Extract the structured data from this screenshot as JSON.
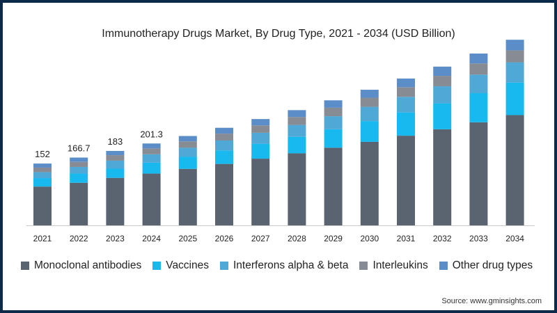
{
  "chart_data": {
    "type": "bar",
    "stacked": true,
    "title": "Immunotherapy Drugs Market, By Drug Type, 2021 - 2034 (USD Billion)",
    "categories": [
      "2021",
      "2022",
      "2023",
      "2024",
      "2025",
      "2026",
      "2027",
      "2028",
      "2029",
      "2030",
      "2031",
      "2032",
      "2033",
      "2034"
    ],
    "series": [
      {
        "name": "Monoclonal antibodies",
        "color": "#5a6370",
        "values": [
          95.4,
          104.7,
          116.8,
          127.3,
          138.9,
          151.1,
          164.0,
          177.1,
          190.9,
          205.3,
          220.4,
          236.3,
          253.4,
          271.1
        ]
      },
      {
        "name": "Vaccines",
        "color": "#17b9ee",
        "values": [
          20.8,
          22.8,
          22.6,
          26.9,
          29.6,
          33.0,
          36.7,
          40.5,
          45.3,
          51.0,
          57.1,
          63.7,
          71.5,
          79.9
        ]
      },
      {
        "name": "Interferons alpha & beta",
        "color": "#4fa8d6",
        "values": [
          14.5,
          16.2,
          19.8,
          20.5,
          22.3,
          24.5,
          26.9,
          29.3,
          32.1,
          35.1,
          38.4,
          41.9,
          45.7,
          49.9
        ]
      },
      {
        "name": "Interleukins",
        "color": "#878c94",
        "values": [
          11.3,
          12.4,
          13.4,
          14.5,
          15.7,
          16.9,
          18.2,
          19.5,
          20.9,
          22.4,
          23.9,
          25.6,
          27.4,
          29.3
        ]
      },
      {
        "name": "Other drug types",
        "color": "#5b8ec9",
        "values": [
          10.0,
          10.6,
          10.4,
          12.1,
          13.2,
          14.4,
          15.6,
          16.9,
          18.2,
          19.6,
          21.2,
          22.8,
          24.4,
          26.1
        ]
      }
    ],
    "data_labels": [
      {
        "category": "2021",
        "text": "152"
      },
      {
        "category": "2022",
        "text": "166.7"
      },
      {
        "category": "2023",
        "text": "183"
      },
      {
        "category": "2024",
        "text": "201.3"
      }
    ],
    "ylim": [
      0,
      460
    ],
    "grid": false,
    "legend_position": "bottom",
    "source": "Source: www.gminsights.com"
  }
}
